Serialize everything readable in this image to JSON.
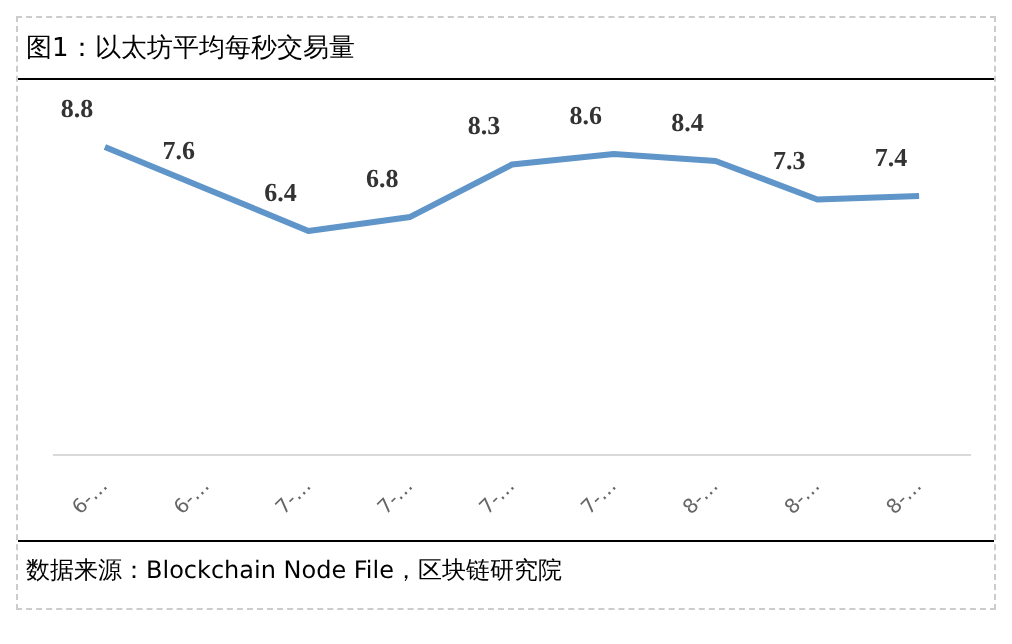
{
  "chart_data": {
    "type": "line",
    "title": "图1：以太坊平均每秒交易量",
    "categories": [
      "6-…",
      "6-…",
      "7-…",
      "7-…",
      "7-…",
      "7-…",
      "8-…",
      "8-…",
      "8-…"
    ],
    "series": [
      {
        "color": "#5f95c8",
        "values": [
          8.8,
          7.6,
          6.4,
          6.8,
          8.3,
          8.6,
          8.4,
          7.3,
          7.4
        ]
      }
    ],
    "tick_labels": "x",
    "data_labels": true,
    "grid": false,
    "legend": false,
    "marker": "none",
    "line_style": "solid",
    "annotations": [
      "数据来源：Blockchain Node File，区块链研究院"
    ]
  }
}
